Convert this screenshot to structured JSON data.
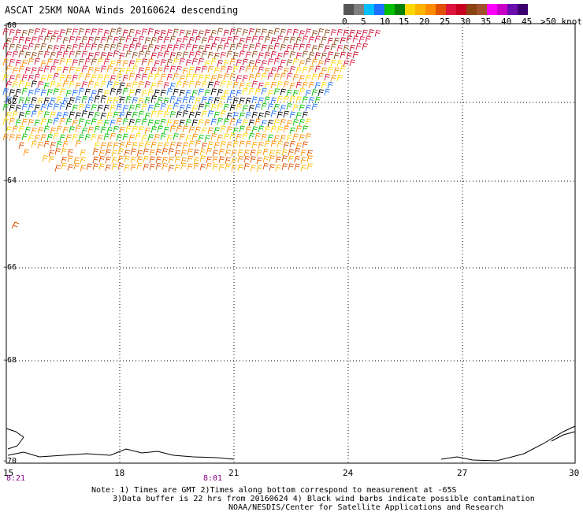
{
  "title": "ASCAT 25KM NOAA Winds 20160624 descending",
  "legend": {
    "colors": [
      "#555555",
      "#808080",
      "#00bfff",
      "#1e6eff",
      "#00c000",
      "#008000",
      "#ffd700",
      "#ffb400",
      "#ff8c00",
      "#e05000",
      "#dc143c",
      "#c80020",
      "#8b4513",
      "#a0522d",
      "#ff00ff",
      "#c800c8",
      "#6a0dad",
      "#3a0070"
    ],
    "labels": [
      "0",
      "5",
      "10",
      "15",
      "20",
      "25",
      "30",
      "35",
      "40",
      "45",
      ">50 knots"
    ]
  },
  "axes": {
    "lat_labels": [
      "-60",
      "-62",
      "-64",
      "-66",
      "-68",
      "-70"
    ],
    "lon_labels": [
      "15",
      "18",
      "21",
      "24",
      "27",
      "30"
    ],
    "time_labels": [
      "8:21",
      "8:01"
    ]
  },
  "notes": {
    "line1": "Note: 1) Times are GMT 2)Times along bottom correspond to measurement at -65S",
    "line2": "3)Data buffer is 22 hrs from 20160624 4) Black wind barbs indicate possible contamination",
    "line3": "NOAA/NESDIS/Center for Satellite Applications and Research"
  }
}
